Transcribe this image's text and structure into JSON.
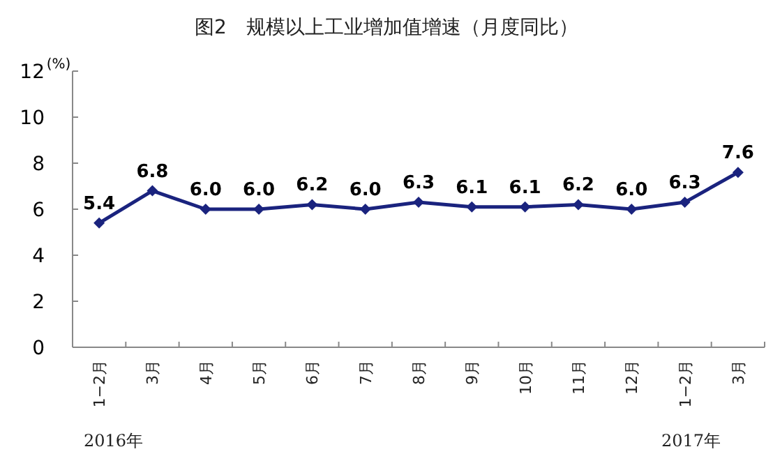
{
  "chart_data": {
    "type": "line",
    "title": "图2　规模以上工业增加值增速（月度同比）",
    "ylabel": "(%)",
    "categories": [
      "1−2月",
      "3月",
      "4月",
      "5月",
      "6月",
      "7月",
      "8月",
      "9月",
      "10月",
      "11月",
      "12月",
      "1−2月",
      "3月"
    ],
    "values": [
      5.4,
      6.8,
      6.0,
      6.0,
      6.2,
      6.0,
      6.3,
      6.1,
      6.1,
      6.2,
      6.0,
      6.3,
      7.6
    ],
    "color": "#1a237e",
    "marker": "diamond",
    "line_style": "solid",
    "value_labels": [
      "5.4",
      "6.8",
      "6.0",
      "6.0",
      "6.2",
      "6.0",
      "6.3",
      "6.1",
      "6.1",
      "6.2",
      "6.0",
      "6.3",
      "7.6"
    ],
    "ylim": [
      0,
      12
    ],
    "yticks": [
      0,
      2,
      4,
      6,
      8,
      10,
      12
    ],
    "annotations": [
      "2016年",
      "2017年"
    ]
  }
}
